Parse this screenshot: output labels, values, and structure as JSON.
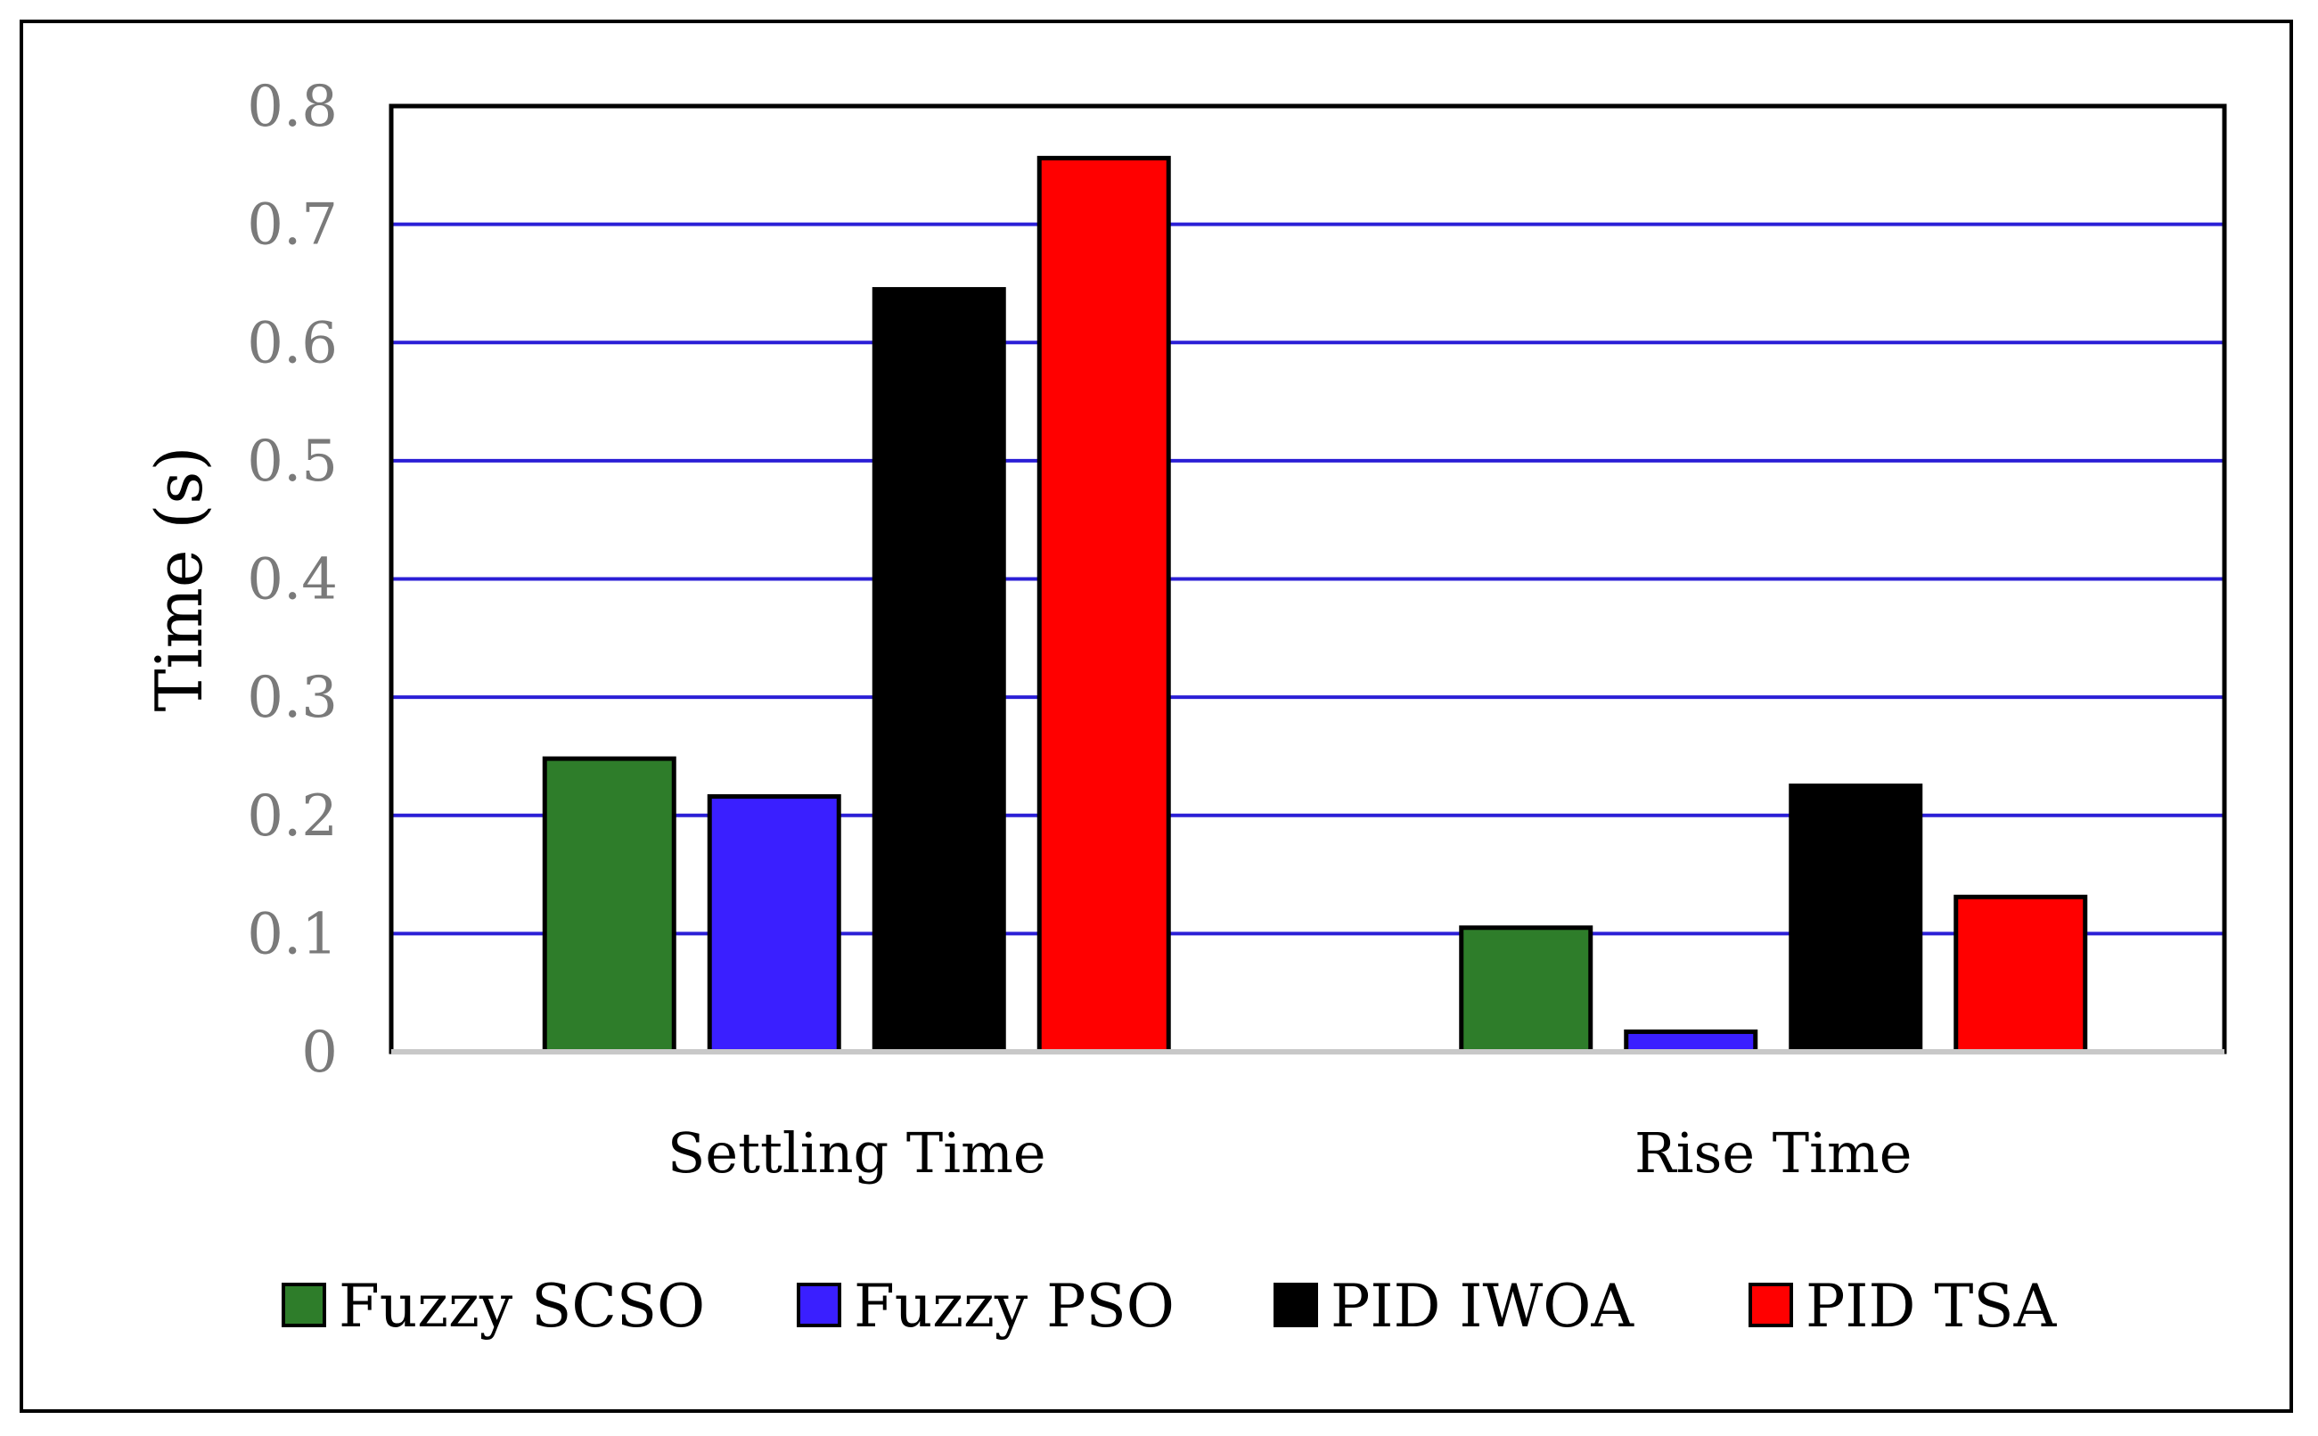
{
  "chart_data": {
    "type": "bar",
    "title": "",
    "xlabel": "",
    "ylabel": "Time (s)",
    "ylim": [
      0,
      0.8
    ],
    "yticks": [
      "0",
      "0.1",
      "0.2",
      "0.3",
      "0.4",
      "0.5",
      "0.6",
      "0.7",
      "0.8"
    ],
    "ytick_values": [
      0,
      0.1,
      0.2,
      0.3,
      0.4,
      0.5,
      0.6,
      0.7,
      0.8
    ],
    "grid": true,
    "legend_position": "bottom",
    "categories": [
      "Settling Time",
      "Rise Time"
    ],
    "series": [
      {
        "name": "Fuzzy SCSO",
        "color": "#2e7d2a",
        "values": [
          0.248,
          0.105
        ]
      },
      {
        "name": "Fuzzy PSO",
        "color": "#3a1fff",
        "values": [
          0.216,
          0.017
        ]
      },
      {
        "name": "PID IWOA",
        "color": "#000000",
        "values": [
          0.645,
          0.225
        ]
      },
      {
        "name": "PID TSA",
        "color": "#ff0000",
        "values": [
          0.756,
          0.131
        ]
      }
    ],
    "colors": {
      "gridline": "#2b1fd6",
      "frame": "#000000",
      "baseline": "#c8c8c8",
      "tick_text": "#7a7a7a"
    }
  }
}
